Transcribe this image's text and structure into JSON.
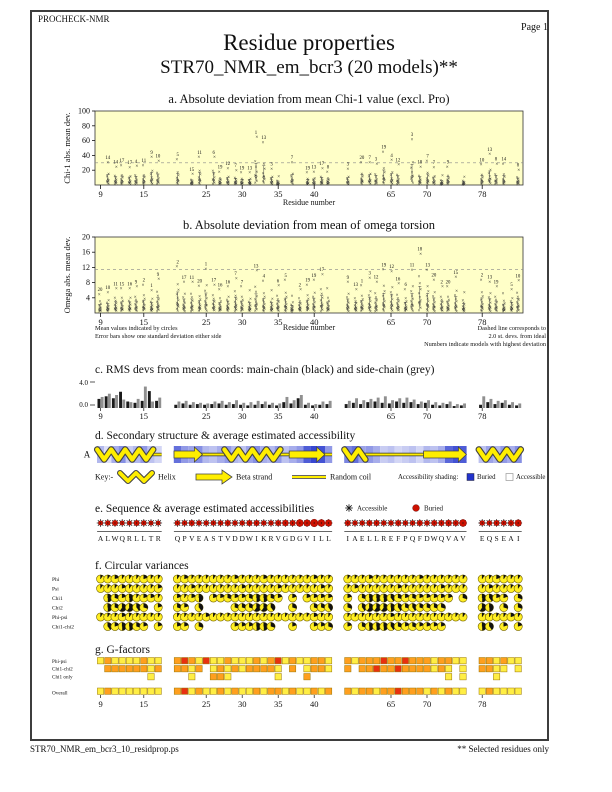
{
  "header": {
    "app": "PROCHECK-NMR",
    "page_label": "Page  1",
    "title": "Residue properties",
    "subtitle": "STR70_NMR_em_bcr3 (20 models)**"
  },
  "footer": {
    "left": "STR70_NMR_em_bcr3_10_residprop.ps",
    "right": "** Selected residues only"
  },
  "notes": {
    "mean_note_1": "Mean values indicated by circles",
    "mean_note_2": "Error bars show one standard deviation either side",
    "residue_axis_label": "Residue number",
    "dashed_note_1": "Dashed line corresponds to",
    "dashed_note_2": "2.0 st. devs. from ideal",
    "dashed_note_3": "Numbers indicate models with highest deviation"
  },
  "key": {
    "label": "Key:-",
    "helix": "Helix",
    "beta": "Beta strand",
    "coil": "Random coil",
    "shading_label": "Accessibility shading:",
    "buried": "Buried",
    "accessible": "Accessible"
  },
  "legend_e": {
    "accessible": "Accessible",
    "buried": "Buried"
  },
  "chain_label": "A",
  "groups": [
    {
      "start": 9,
      "end": 17,
      "seq": "ALWQRLLTR"
    },
    {
      "start": 21,
      "end": 42,
      "seq": "QPVEASTVDDWIKRVGDGVILL"
    },
    {
      "start": 59,
      "end": 75,
      "seq": "IAELLREFPQFDWQVAV"
    },
    {
      "start": 78,
      "end": 83,
      "seq": "EQSEAI"
    }
  ],
  "xticks": [
    9,
    15,
    25,
    30,
    35,
    40,
    65,
    70,
    78
  ],
  "colors": {
    "plot_bg": "#ffffc8",
    "dashed": "#888888",
    "mark": "#111111",
    "bar_main": "#1a1a1a",
    "bar_side": "#909090",
    "ss_yellow": "#ffee00",
    "ss_outline": "#555500",
    "buried_blue": "#2233cc",
    "red": "#cc1100",
    "pie_yellow": "#ffee22",
    "g_yellow": "#ffee44",
    "g_orange": "#ff9f1e",
    "g_red": "#e83010"
  },
  "chart_data": [
    {
      "id": "a",
      "type": "scatter",
      "title": "a. Absolute deviation from mean Chi-1 value (excl. Pro)",
      "ylabel": "Chi-1 abs. mean dev.",
      "xlabel": "Residue number",
      "ylim": [
        0,
        100
      ],
      "yticks": [
        20,
        40,
        60,
        80,
        100
      ],
      "dashed_y": 30,
      "labels": [
        "",
        "14",
        "14",
        "17",
        "17",
        "4",
        "11",
        "9",
        "10",
        "5",
        "",
        "15",
        "11",
        "",
        "6",
        "19",
        "12",
        "7",
        "19",
        "13",
        "1",
        "13",
        "3",
        "",
        "",
        "7",
        "",
        "19",
        "13",
        "17",
        "8",
        "3",
        "",
        "20",
        "7",
        "3",
        "19",
        "4",
        "12",
        "",
        "3",
        "18",
        "7",
        "7",
        "",
        "9",
        "",
        "",
        "10",
        "13",
        "8",
        "14",
        "",
        "8"
      ],
      "peaks": [
        null,
        31,
        25,
        27,
        24,
        26,
        27,
        38,
        33,
        35,
        null,
        15,
        38,
        null,
        38,
        18,
        23,
        20,
        17,
        17,
        65,
        58,
        22,
        12,
        null,
        31,
        null,
        17,
        18,
        23,
        18,
        22,
        null,
        31,
        31,
        29,
        45,
        34,
        28,
        null,
        62,
        25,
        33,
        24,
        13,
        25,
        null,
        11,
        28,
        42,
        29,
        29,
        null,
        21
      ]
    },
    {
      "id": "b",
      "type": "scatter",
      "title": "b. Absolute deviation from mean of omega torsion",
      "ylabel": "Omega abs. mean dev.",
      "xlabel": "Residue number",
      "ylim": [
        0,
        20
      ],
      "yticks": [
        4,
        8,
        12,
        16,
        20
      ],
      "dashed_y": 11.5,
      "labels": [
        "20",
        "10",
        "11",
        "15",
        "16",
        "9",
        "2",
        "1",
        "9",
        "2",
        "17",
        "11",
        "20",
        "1",
        "17",
        "16",
        "16",
        "7",
        "7",
        "",
        "13",
        "4",
        "",
        "6",
        "5",
        "",
        "2",
        "19",
        "19",
        "17",
        "",
        "9",
        "13",
        "1",
        "3",
        "12",
        "19",
        "12",
        "16",
        "6",
        "11",
        "18",
        "13",
        "20",
        "2",
        "20",
        "15",
        "",
        "2",
        "13",
        "19",
        "",
        "5",
        "10"
      ],
      "peaks": [
        5,
        5.5,
        6.5,
        6.5,
        6.5,
        7,
        7.5,
        6,
        9,
        12.3,
        8.2,
        8.2,
        7.2,
        11.7,
        7.5,
        6.2,
        7,
        9.2,
        7,
        6,
        11.2,
        8.5,
        6,
        7.3,
        8.7,
        4.5,
        6.2,
        7.5,
        8.7,
        10.2,
        6.5,
        8.2,
        6.3,
        7.3,
        9.3,
        8.3,
        11.5,
        11,
        7.8,
        6.3,
        11.4,
        15.6,
        11.4,
        8.8,
        7,
        7,
        9.5,
        5.5,
        8.8,
        8.3,
        7,
        5.2,
        6.3,
        8.6
      ]
    },
    {
      "id": "c",
      "type": "bar",
      "title": "c. RMS devs from mean coords: main-chain (black) and side-chain (grey)",
      "ylim": [
        0,
        4
      ],
      "yticks": [
        0.0,
        4.0
      ],
      "main": [
        1.4,
        1.8,
        1.5,
        2.5,
        1.0,
        0.8,
        1.1,
        2.6,
        1.1,
        0.5,
        0.7,
        0.5,
        0.6,
        0.5,
        0.6,
        0.7,
        0.5,
        0.6,
        0.5,
        0.4,
        0.5,
        0.6,
        0.5,
        0.4,
        0.9,
        0.7,
        1.5,
        0.5,
        0.4,
        0.5,
        0.6,
        0.6,
        0.8,
        0.6,
        0.9,
        1.0,
        0.8,
        0.7,
        1.0,
        0.8,
        0.9,
        0.6,
        0.8,
        0.5,
        0.4,
        0.6,
        0.3,
        0.4,
        0.5,
        0.9,
        0.6,
        0.8,
        0.5,
        0.4
      ],
      "side": [
        1.7,
        2.2,
        2.0,
        1.3,
        0.9,
        1.4,
        3.3,
        1.0,
        1.6,
        1.0,
        1.1,
        0.9,
        0.8,
        0.7,
        1.0,
        1.1,
        0.9,
        1.2,
        0.8,
        0.9,
        1.1,
        1.0,
        0.8,
        0.7,
        1.7,
        1.2,
        2.0,
        0.8,
        0.6,
        1.0,
        1.1,
        1.1,
        1.5,
        1.2,
        1.4,
        1.6,
        1.8,
        1.2,
        1.5,
        1.6,
        1.3,
        1.0,
        1.2,
        0.9,
        0.8,
        1.0,
        0.6,
        0.7,
        1.8,
        1.4,
        1.1,
        1.2,
        0.9,
        0.7
      ]
    },
    {
      "id": "d",
      "type": "diagram",
      "title": "d. Secondary structure & average estimated accessibility",
      "ss": [
        {
          "type": "helix",
          "from": 9,
          "to": 16
        },
        {
          "type": "coil",
          "from": 16,
          "to": 17
        },
        {
          "type": "strand",
          "from": 21,
          "to": 24
        },
        {
          "type": "coil",
          "from": 24,
          "to": 28
        },
        {
          "type": "helix",
          "from": 28,
          "to": 35
        },
        {
          "type": "coil",
          "from": 35,
          "to": 37
        },
        {
          "type": "strand",
          "from": 37,
          "to": 41
        },
        {
          "type": "coil",
          "from": 41,
          "to": 42
        },
        {
          "type": "helix",
          "from": 59,
          "to": 61
        },
        {
          "type": "coil",
          "from": 61,
          "to": 70
        },
        {
          "type": "strand",
          "from": 70,
          "to": 75
        },
        {
          "type": "helix",
          "from": 78,
          "to": 83
        }
      ],
      "access": [
        0.35,
        0.15,
        0.4,
        0.55,
        0.25,
        0.35,
        0.5,
        0.3,
        0.2,
        0.7,
        0.5,
        0.45,
        0.55,
        0.35,
        0.3,
        0.4,
        0.5,
        0.35,
        0.3,
        0.45,
        0.55,
        0.4,
        0.35,
        0.5,
        0.3,
        0.4,
        0.5,
        0.8,
        0.9,
        0.85,
        0.5,
        0.6,
        0.7,
        0.45,
        0.5,
        0.4,
        0.25,
        0.3,
        0.2,
        0.25,
        0.3,
        0.2,
        0.35,
        0.3,
        0.4,
        0.75,
        0.85,
        0.8,
        0.3,
        0.45,
        0.35,
        0.5,
        0.4,
        0.55
      ]
    },
    {
      "id": "e",
      "type": "sequence",
      "title": "e. Sequence & average estimated accessibilities",
      "buried": [
        0.3,
        0.4,
        0.5,
        0.3,
        0.3,
        0.5,
        0.4,
        0.3,
        0.3,
        0.4,
        0.4,
        0.5,
        0.4,
        0.4,
        0.4,
        0.4,
        0.5,
        0.4,
        0.4,
        0.5,
        0.5,
        0.4,
        0.4,
        0.5,
        0.6,
        0.5,
        0.8,
        0.7,
        0.9,
        0.8,
        0.7,
        0.5,
        0.4,
        0.4,
        0.5,
        0.5,
        0.4,
        0.4,
        0.5,
        0.4,
        0.4,
        0.5,
        0.4,
        0.5,
        0.5,
        0.6,
        0.5,
        0.8,
        0.4,
        0.4,
        0.5,
        0.4,
        0.5,
        0.7
      ]
    },
    {
      "id": "f",
      "type": "pie-grid",
      "title": "f. Circular variances",
      "rows": [
        {
          "label": "Phi",
          "values": [
            1,
            1,
            2,
            1,
            1,
            1,
            2,
            1,
            1,
            1,
            2,
            1,
            1,
            1,
            1,
            1,
            1,
            2,
            1,
            1,
            1,
            2,
            1,
            1,
            1,
            1,
            1,
            1,
            2,
            1,
            1,
            1,
            1,
            1,
            2,
            1,
            1,
            1,
            1,
            1,
            1,
            2,
            1,
            1,
            1,
            1,
            1,
            1,
            1,
            1,
            2,
            1,
            1,
            1
          ]
        },
        {
          "label": "Psi",
          "values": [
            1,
            1,
            1,
            2,
            1,
            1,
            1,
            1,
            2,
            1,
            1,
            2,
            1,
            1,
            1,
            1,
            1,
            1,
            2,
            1,
            1,
            1,
            1,
            2,
            1,
            1,
            1,
            1,
            1,
            2,
            1,
            1,
            2,
            1,
            1,
            1,
            1,
            1,
            2,
            1,
            1,
            1,
            1,
            1,
            2,
            1,
            1,
            1,
            1,
            2,
            1,
            1,
            1,
            1
          ]
        },
        {
          "label": "Chi1",
          "values": [
            null,
            5,
            3,
            2,
            5,
            1,
            2,
            2,
            1,
            2,
            1,
            2,
            5,
            null,
            2,
            2,
            3,
            2,
            2,
            3,
            5,
            5,
            3,
            2,
            null,
            2,
            null,
            2,
            2,
            2,
            2,
            2,
            null,
            3,
            5,
            5,
            5,
            4,
            3,
            2,
            3,
            2,
            2,
            2,
            2,
            2,
            null,
            3,
            5,
            4,
            2,
            2,
            null,
            3
          ]
        },
        {
          "label": "Chi2",
          "values": [
            null,
            5,
            3,
            6,
            6,
            4,
            3,
            null,
            2,
            3,
            2,
            null,
            4,
            null,
            null,
            null,
            null,
            3,
            3,
            3,
            6,
            6,
            4,
            null,
            null,
            3,
            null,
            null,
            3,
            3,
            4,
            3,
            null,
            4,
            6,
            6,
            6,
            5,
            4,
            3,
            4,
            3,
            3,
            3,
            3,
            null,
            null,
            null,
            6,
            5,
            null,
            3,
            null,
            3
          ]
        },
        {
          "label": "Phi-psi",
          "values": [
            1,
            1,
            1,
            2,
            1,
            1,
            1,
            1,
            1,
            1,
            1,
            1,
            1,
            2,
            1,
            1,
            1,
            1,
            1,
            1,
            1,
            1,
            1,
            1,
            1,
            1,
            1,
            1,
            2,
            1,
            1,
            1,
            1,
            1,
            1,
            1,
            1,
            2,
            1,
            1,
            1,
            1,
            1,
            1,
            1,
            1,
            1,
            1,
            1,
            1,
            1,
            1,
            2,
            1
          ]
        },
        {
          "label": "Chi1-chi2",
          "values": [
            null,
            4,
            2,
            5,
            5,
            3,
            2,
            null,
            2,
            2,
            2,
            null,
            3,
            null,
            null,
            null,
            null,
            2,
            2,
            2,
            5,
            5,
            3,
            null,
            null,
            2,
            null,
            null,
            2,
            2,
            3,
            2,
            null,
            3,
            5,
            5,
            5,
            4,
            3,
            2,
            3,
            2,
            2,
            2,
            2,
            null,
            null,
            null,
            5,
            4,
            null,
            2,
            null,
            2
          ]
        }
      ]
    },
    {
      "id": "g",
      "type": "heatmap",
      "title": "g. G-factors",
      "rows": [
        {
          "label": "Phi-psi",
          "colors": [
            "y",
            "o",
            "y",
            "y",
            "y",
            "y",
            "o",
            "y",
            "y",
            "o",
            "r",
            "o",
            "y",
            "r",
            "y",
            "y",
            "o",
            "y",
            "y",
            "y",
            "o",
            "y",
            "o",
            "r",
            "y",
            "o",
            "y",
            "y",
            "o",
            "o",
            "y",
            "o",
            "y",
            "o",
            "o",
            "o",
            "r",
            "o",
            "o",
            "r",
            "o",
            "o",
            "o",
            "y",
            "o",
            "o",
            "y",
            "y",
            "o",
            "o",
            "y",
            "o",
            "y",
            "y"
          ]
        },
        {
          "label": "Chi1-chi2",
          "colors": [
            null,
            "o",
            "o",
            "o",
            "o",
            "o",
            "o",
            "y",
            "o",
            "o",
            "o",
            "y",
            "o",
            null,
            "y",
            "o",
            "y",
            "o",
            "y",
            "o",
            "o",
            "o",
            "o",
            "y",
            null,
            "o",
            null,
            "y",
            "o",
            "o",
            "y",
            "o",
            null,
            "o",
            "o",
            "r",
            "o",
            "o",
            "r",
            "o",
            "o",
            "o",
            "o",
            "y",
            "o",
            "y",
            null,
            "y",
            "o",
            "o",
            "y",
            "y",
            null,
            "y"
          ]
        },
        {
          "label": "Chi1 only",
          "colors": [
            null,
            null,
            null,
            null,
            null,
            null,
            null,
            "y",
            null,
            null,
            null,
            "y",
            null,
            null,
            "o",
            "o",
            "y",
            null,
            null,
            null,
            null,
            null,
            null,
            "y",
            null,
            null,
            null,
            "o",
            null,
            null,
            null,
            null,
            null,
            null,
            null,
            null,
            null,
            null,
            null,
            null,
            null,
            null,
            null,
            null,
            null,
            "y",
            null,
            "y",
            null,
            null,
            "y",
            null,
            null,
            null
          ]
        },
        {
          "label": "Overall",
          "colors": [
            "y",
            "o",
            "y",
            "y",
            "y",
            "y",
            "y",
            "y",
            "y",
            "o",
            "r",
            "y",
            "o",
            "y",
            "y",
            "o",
            "y",
            "o",
            "y",
            "y",
            "o",
            "y",
            "o",
            "o",
            "y",
            "o",
            "y",
            "y",
            "o",
            "y",
            "o",
            "o",
            "y",
            "o",
            "o",
            "y",
            "o",
            "o",
            "r",
            "o",
            "o",
            "o",
            "y",
            "o",
            "y",
            "o",
            "y",
            "y",
            "y",
            "o",
            "y",
            "y",
            "y",
            "y"
          ]
        }
      ]
    }
  ]
}
